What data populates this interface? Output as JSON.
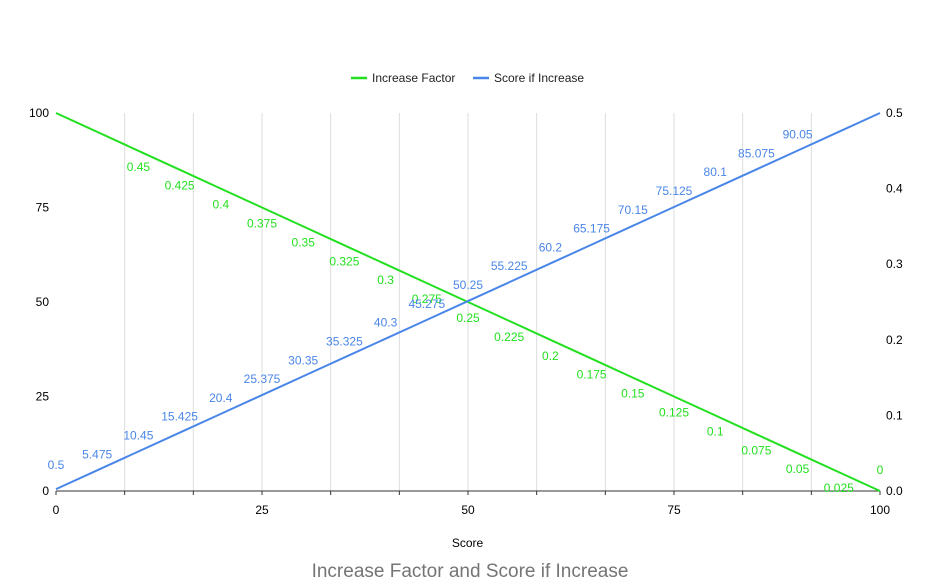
{
  "chart_data": {
    "type": "line",
    "title": "Increase Factor and Score if Increase",
    "xlabel": "Score",
    "xlim": [
      0,
      100
    ],
    "x_ticks": [
      "0",
      "25",
      "50",
      "75",
      "100"
    ],
    "y_left": {
      "lim": [
        0,
        100
      ],
      "ticks": [
        "0",
        "25",
        "50",
        "75",
        "100"
      ]
    },
    "y_right": {
      "lim": [
        0,
        0.5
      ],
      "ticks": [
        "0.0",
        "0.1",
        "0.2",
        "0.3",
        "0.4",
        "0.5"
      ]
    },
    "legend_position": "top",
    "grid": "vertical",
    "x": [
      0,
      5,
      10,
      15,
      20,
      25,
      30,
      35,
      40,
      45,
      50,
      55,
      60,
      65,
      70,
      75,
      80,
      85,
      90,
      95,
      100
    ],
    "series": [
      {
        "name": "Increase Factor",
        "axis": "right",
        "color": "#22e01f",
        "values": [
          0.5,
          0.475,
          0.45,
          0.425,
          0.4,
          0.375,
          0.35,
          0.325,
          0.3,
          0.275,
          0.25,
          0.225,
          0.2,
          0.175,
          0.15,
          0.125,
          0.1,
          0.075,
          0.05,
          0.025,
          0
        ],
        "labels": [
          "",
          "",
          "0.45",
          "0.425",
          "0.4",
          "0.375",
          "0.35",
          "0.325",
          "0.3",
          "0.275",
          "0.25",
          "0.225",
          "0.2",
          "0.175",
          "0.15",
          "0.125",
          "0.1",
          "0.075",
          "0.05",
          "0.025",
          "0"
        ]
      },
      {
        "name": "Score if Increase",
        "axis": "left",
        "color": "#4a86e8",
        "values": [
          0.5,
          5.475,
          10.45,
          15.425,
          20.4,
          25.375,
          30.35,
          35.325,
          40.3,
          45.275,
          50.25,
          55.225,
          60.2,
          65.175,
          70.15,
          75.125,
          80.1,
          85.075,
          90.05,
          95.025,
          100
        ],
        "labels": [
          "0.5",
          "5.475",
          "10.45",
          "15.425",
          "20.4",
          "25.375",
          "30.35",
          "35.325",
          "40.3",
          "45.275",
          "50.25",
          "55.225",
          "60.2",
          "65.175",
          "70.15",
          "75.125",
          "80.1",
          "85.075",
          "90.05",
          "",
          ""
        ]
      }
    ]
  }
}
